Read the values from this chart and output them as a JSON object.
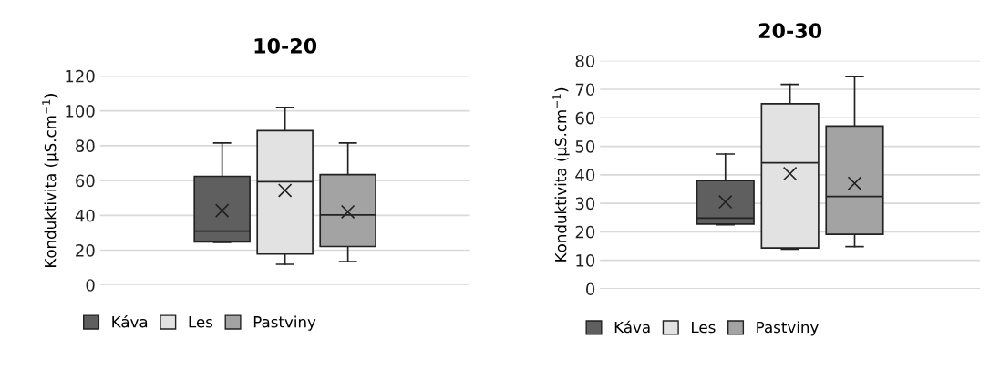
{
  "chart_data": [
    {
      "type": "box",
      "title": "10-20",
      "ylabel": "Konduktivita (µS.cm$^{−1}$)",
      "categories": [
        null
      ],
      "ylim": [
        0,
        120
      ],
      "yticks": [
        0,
        20,
        40,
        60,
        80,
        100,
        120
      ],
      "grid": "y",
      "legend": "bottom",
      "series": [
        {
          "name": "Káva",
          "color": "#5f5f5f",
          "boxes": [
            {
              "low": 24.5,
              "q1": 24.8,
              "median": 30.9,
              "q3": 62.4,
              "high": 81.6,
              "mean": 42.7
            }
          ]
        },
        {
          "name": "Les",
          "color": "#e2e2e2",
          "boxes": [
            {
              "low": 11.9,
              "q1": 17.8,
              "median": 59.3,
              "q3": 88.6,
              "high": 102,
              "mean": 54.3
            }
          ]
        },
        {
          "name": "Pastviny",
          "color": "#a3a3a3",
          "boxes": [
            {
              "low": 13.4,
              "q1": 22.1,
              "median": 40.2,
              "q3": 63.4,
              "high": 81.6,
              "mean": 42.0
            }
          ]
        }
      ]
    },
    {
      "type": "box",
      "title": "20-30",
      "ylabel": "Konduktivita (µS.cm$^{−1}$)",
      "categories": [
        null
      ],
      "ylim": [
        0,
        80
      ],
      "yticks": [
        0,
        10,
        20,
        30,
        40,
        50,
        60,
        70,
        80
      ],
      "grid": "y",
      "legend": "bottom",
      "series": [
        {
          "name": "Káva",
          "color": "#5f5f5f",
          "boxes": [
            {
              "low": 22.5,
              "q1": 22.7,
              "median": 24.8,
              "q3": 38.0,
              "high": 47.3,
              "mean": 30.5
            }
          ]
        },
        {
          "name": "Les",
          "color": "#e2e2e2",
          "boxes": [
            {
              "low": 13.9,
              "q1": 14.3,
              "median": 44.2,
              "q3": 64.9,
              "high": 71.7,
              "mean": 40.4
            }
          ]
        },
        {
          "name": "Pastviny",
          "color": "#a3a3a3",
          "boxes": [
            {
              "low": 14.8,
              "q1": 19.1,
              "median": 32.4,
              "q3": 57.1,
              "high": 74.5,
              "mean": 37.0
            }
          ]
        }
      ]
    }
  ]
}
